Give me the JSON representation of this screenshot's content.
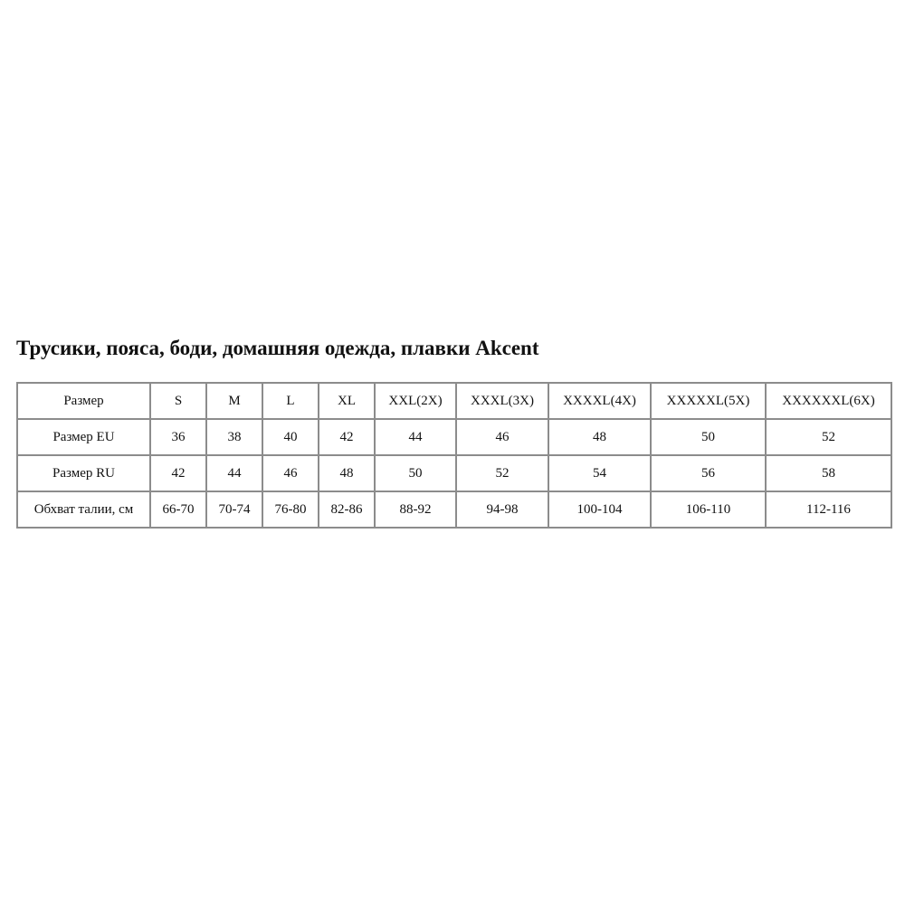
{
  "title": "Трусики, пояса, боди, домашняя одежда, плавки Akcent",
  "table": {
    "rows": [
      [
        "Размер",
        "S",
        "M",
        "L",
        "XL",
        "XXL(2X)",
        "XXXL(3X)",
        "XXXXL(4X)",
        "XXXXXL(5X)",
        "XXXXXXL(6X)"
      ],
      [
        "Размер EU",
        "36",
        "38",
        "40",
        "42",
        "44",
        "46",
        "48",
        "50",
        "52"
      ],
      [
        "Размер RU",
        "42",
        "44",
        "46",
        "48",
        "50",
        "52",
        "54",
        "56",
        "58"
      ],
      [
        "Обхват талии, см",
        "66-70",
        "70-74",
        "76-80",
        "82-86",
        "88-92",
        "94-98",
        "100-104",
        "106-110",
        "112-116"
      ]
    ]
  },
  "colors": {
    "border": "#8c8c8c",
    "text": "#111111"
  }
}
